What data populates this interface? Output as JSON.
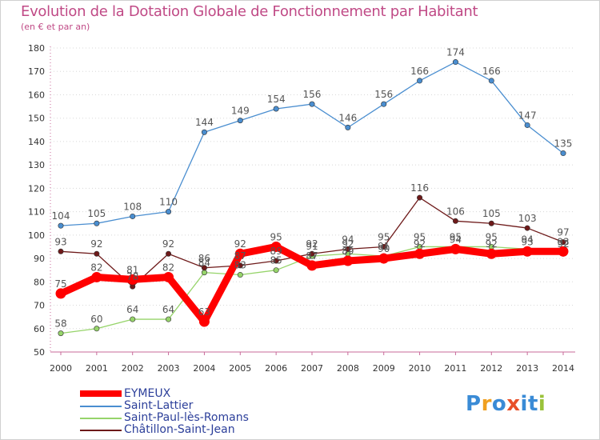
{
  "header": {
    "title": "Evolution de la Dotation Globale de Fonctionnement par Habitant",
    "subtitle": "(en € et par an)"
  },
  "logo": {
    "letters": [
      "P",
      "r",
      "o",
      "x",
      "i",
      "t",
      "i"
    ],
    "colors": [
      "#3a8bd6",
      "#f0a020",
      "#3a8bd6",
      "#e8502a",
      "#3a8bd6",
      "#3a8bd6",
      "#9ac23a"
    ]
  },
  "chart_data": {
    "type": "line",
    "title": "Evolution de la Dotation Globale de Fonctionnement par Habitant",
    "subtitle": "(en € et par an)",
    "xlabel": "",
    "ylabel": "",
    "ylim": [
      50,
      180
    ],
    "y_ticks": [
      50,
      60,
      70,
      80,
      90,
      100,
      110,
      120,
      130,
      140,
      150,
      160,
      170,
      180
    ],
    "categories": [
      "2000",
      "2001",
      "2002",
      "2003",
      "2004",
      "2005",
      "2006",
      "2007",
      "2008",
      "2009",
      "2010",
      "2011",
      "2012",
      "2013",
      "2014"
    ],
    "grid": "horizontal-dotted",
    "legend": "bottom-left",
    "series": [
      {
        "name": "Saint-Lattier",
        "color": "#4a8ed0",
        "values": [
          104,
          105,
          108,
          110,
          144,
          149,
          154,
          156,
          146,
          156,
          166,
          174,
          166,
          147,
          135
        ],
        "labels": [
          "104",
          "105",
          "108",
          "110",
          "144",
          "149",
          "154",
          "156",
          "146",
          "156",
          "166",
          "174",
          "166",
          "147",
          "135"
        ]
      },
      {
        "name": "Saint-Paul-lès-Romans",
        "color": "#96d46a",
        "values": [
          58,
          60,
          64,
          64,
          84,
          83,
          85,
          91,
          92,
          91,
          95,
          95,
          95,
          94,
          92
        ],
        "labels": [
          "58",
          "60",
          "64",
          "64",
          "84",
          "83",
          "85",
          "91",
          "92",
          "91",
          "95",
          "95",
          "95",
          "94",
          "92"
        ]
      },
      {
        "name": "Châtillon-Saint-Jean",
        "color": "#6e1a1a",
        "values": [
          93,
          92,
          78,
          92,
          86,
          87,
          89,
          92,
          94,
          95,
          116,
          106,
          105,
          103,
          97
        ],
        "labels": [
          "93",
          "92",
          "78",
          "92",
          "86",
          "87",
          "89",
          "92",
          "94",
          "95",
          "116",
          "106",
          "105",
          "103",
          "97"
        ]
      },
      {
        "name": "EYMEUX",
        "color": "#ff0000",
        "values": [
          75,
          82,
          81,
          82,
          63,
          92,
          95,
          87,
          89,
          90,
          92,
          94,
          92,
          93,
          93
        ],
        "labels": [
          "75",
          "82",
          "81",
          "82",
          "63",
          "92",
          "95",
          "87",
          "89",
          "90",
          "92",
          "94",
          "92",
          "93",
          "93"
        ]
      }
    ],
    "legend_order": [
      "EYMEUX",
      "Saint-Lattier",
      "Saint-Paul-lès-Romans",
      "Châtillon-Saint-Jean"
    ]
  }
}
